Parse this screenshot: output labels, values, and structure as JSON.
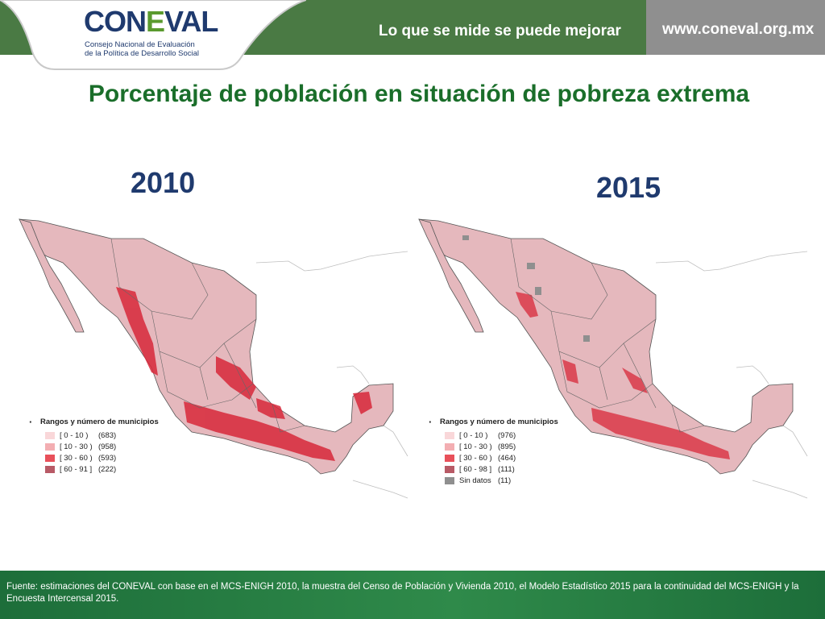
{
  "header": {
    "brand_part1": "CON",
    "brand_part2": "E",
    "brand_part3": "VAL",
    "org_name_line1": "Consejo Nacional de Evaluación",
    "org_name_line2": "de la Política de Desarrollo Social",
    "slogan": "Lo que se mide se puede mejorar",
    "url": "www.coneval.org.mx"
  },
  "title": "Porcentaje de población en situación de pobreza extrema",
  "maps": [
    {
      "year": "2010",
      "legend_title": "Rangos y número de municipios",
      "legend": [
        {
          "range": "[   0 - 10 )",
          "count": "(683)",
          "color": "#f9d7d9"
        },
        {
          "range": "[ 10 - 30 )",
          "count": "(958)",
          "color": "#f3aeb2"
        },
        {
          "range": "[ 30 - 60 )",
          "count": "(593)",
          "color": "#e8505a"
        },
        {
          "range": "[ 60 - 91 ]",
          "count": "(222)",
          "color": "#b85a66"
        }
      ]
    },
    {
      "year": "2015",
      "legend_title": "Rangos y número de municipios",
      "legend": [
        {
          "range": "[   0 - 10 )",
          "count": "(976)",
          "color": "#f9d7d9"
        },
        {
          "range": "[ 10 - 30 )",
          "count": "(895)",
          "color": "#f3aeb2"
        },
        {
          "range": "[ 30 - 60 )",
          "count": "(464)",
          "color": "#e8505a"
        },
        {
          "range": "[ 60 - 98 ]",
          "count": "(111)",
          "color": "#b85a66"
        },
        {
          "range": "Sin datos",
          "count": "(11)",
          "color": "#8f8f8f"
        }
      ]
    }
  ],
  "colors": {
    "header_green": "#4a7a44",
    "header_gray": "#8f8f8f",
    "title_green": "#1a6e2a",
    "year_blue": "#1f3a6e",
    "map_base": "#e5b8bd",
    "map_high": "#d8283a",
    "footer_green": "#2f8a4a"
  },
  "footer": {
    "source": "Fuente: estimaciones del CONEVAL con base en el MCS-ENIGH 2010, la muestra del Censo de Población y Vivienda 2010,  el Modelo Estadístico 2015 para la continuidad del MCS-ENIGH y la Encuesta Intercensal 2015."
  }
}
